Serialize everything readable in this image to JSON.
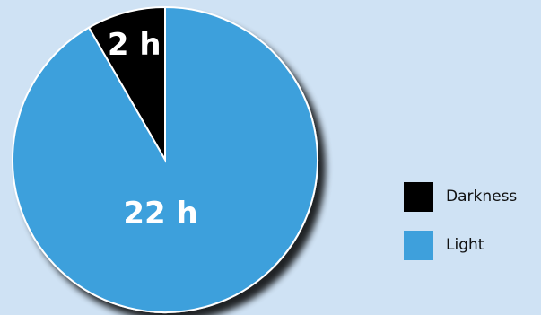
{
  "chart_data": {
    "type": "pie",
    "categories": [
      "Darkness",
      "Light"
    ],
    "values": [
      2,
      22
    ],
    "labels": [
      "2 h",
      "22 h"
    ],
    "colors": [
      "#000000",
      "#3ea0dc"
    ],
    "legend": "right",
    "title": ""
  },
  "background": "#cfe2f4",
  "legend": {
    "items": [
      {
        "label": "Darkness",
        "color": "#000000"
      },
      {
        "label": "Light",
        "color": "#3ea0dc"
      }
    ]
  }
}
